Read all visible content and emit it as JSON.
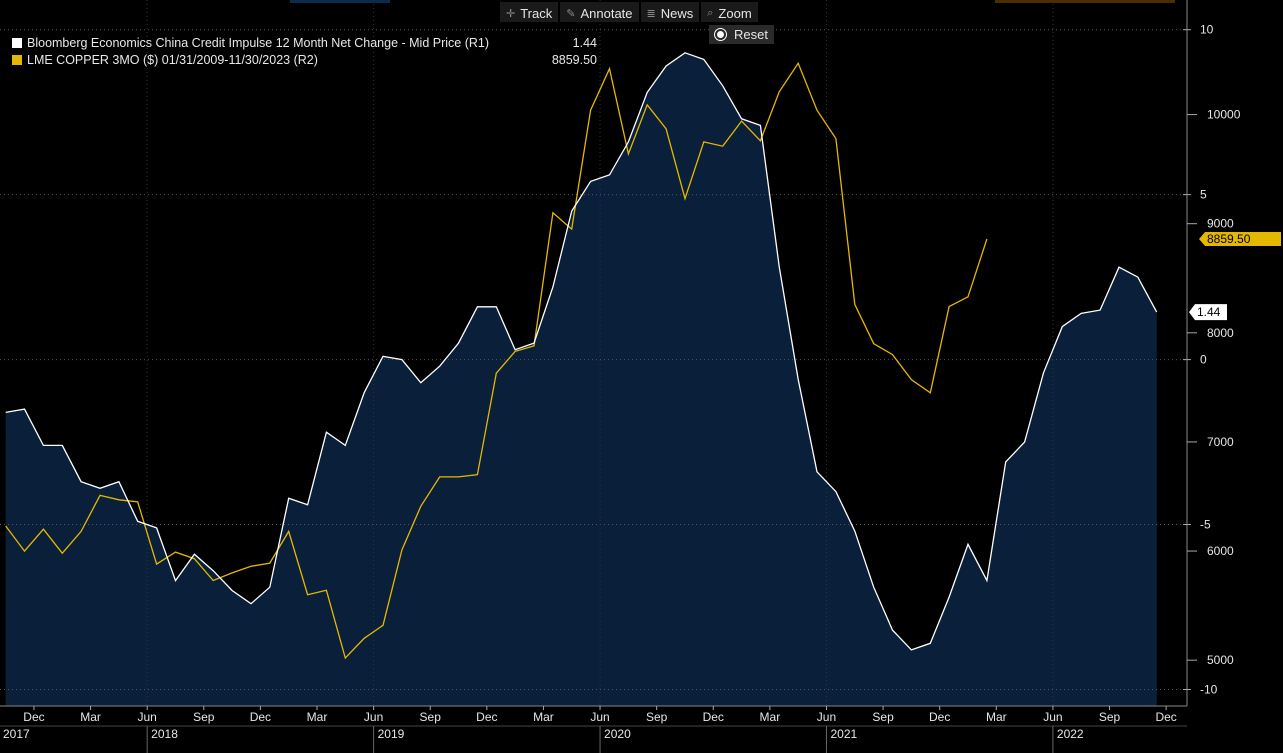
{
  "toolbar": {
    "track_label": "Track",
    "annotate_label": "Annotate",
    "news_label": "News",
    "zoom_label": "Zoom",
    "reset_label": "Reset"
  },
  "legend": {
    "series1_label": "Bloomberg Economics China Credit Impulse 12 Month Net Change - Mid Price (R1)",
    "series1_value": "1.44",
    "series2_label": "LME COPPER 3MO ($) 01/31/2009-11/30/2023 (R2)",
    "series2_value": "8859.50"
  },
  "colors": {
    "background": "#000000",
    "area_fill": "#0a1f3a",
    "impulse_line": "#ffffff",
    "copper_line": "#e5b800",
    "grid": "#555555",
    "axis_text": "#e6e6e6",
    "label_bg": "#ffffff"
  },
  "chart_data": {
    "type": "line",
    "title": "",
    "x_labels": [
      {
        "label": "Dec",
        "t": 1.5
      },
      {
        "label": "Mar",
        "t": 4.5
      },
      {
        "label": "Jun",
        "t": 7.5
      },
      {
        "label": "Sep",
        "t": 10.5
      },
      {
        "label": "Dec",
        "t": 13.5
      },
      {
        "label": "Mar",
        "t": 16.5
      },
      {
        "label": "Jun",
        "t": 19.5
      },
      {
        "label": "Sep",
        "t": 22.5
      },
      {
        "label": "Dec",
        "t": 25.5
      },
      {
        "label": "Mar",
        "t": 28.5
      },
      {
        "label": "Jun",
        "t": 31.5
      },
      {
        "label": "Sep",
        "t": 34.5
      },
      {
        "label": "Dec",
        "t": 37.5
      },
      {
        "label": "Mar",
        "t": 40.5
      },
      {
        "label": "Jun",
        "t": 43.5
      },
      {
        "label": "Sep",
        "t": 46.5
      },
      {
        "label": "Dec",
        "t": 49.5
      },
      {
        "label": "Mar",
        "t": 52.5
      },
      {
        "label": "Jun",
        "t": 55.5
      },
      {
        "label": "Sep",
        "t": 58.5
      },
      {
        "label": "Dec",
        "t": 61.5
      }
    ],
    "year_labels": [
      {
        "label": "2017",
        "t": 0
      },
      {
        "label": "2018",
        "t": 8
      },
      {
        "label": "2019",
        "t": 20
      },
      {
        "label": "2020",
        "t": 32
      },
      {
        "label": "2021",
        "t": 44
      },
      {
        "label": "2022",
        "t": 56
      }
    ],
    "x_range": [
      -0.3,
      62.5
    ],
    "series": [
      {
        "name": "Bloomberg Economics China Credit Impulse 12 Month Net Change - Mid Price (R1)",
        "axis": "R1",
        "t_start": 0,
        "values": [
          -1.6,
          -1.5,
          -2.6,
          -2.6,
          -3.7,
          -3.9,
          -3.7,
          -4.9,
          -5.1,
          -6.7,
          -5.9,
          -6.4,
          -7.0,
          -7.4,
          -6.9,
          -4.2,
          -4.4,
          -2.2,
          -2.6,
          -1.0,
          0.1,
          -0.0,
          -0.7,
          -0.2,
          0.5,
          1.6,
          1.6,
          0.3,
          0.5,
          2.2,
          4.5,
          5.4,
          5.6,
          6.6,
          8.1,
          8.9,
          9.3,
          9.1,
          8.3,
          7.3,
          7.1,
          2.8,
          -0.6,
          -3.4,
          -4.0,
          -5.2,
          -6.9,
          -8.2,
          -8.8,
          -8.6,
          -7.2,
          -5.6,
          -6.7,
          -3.1,
          -2.5,
          -0.4,
          1.0,
          1.4,
          1.5,
          2.8,
          2.5,
          1.44
        ],
        "color": "#ffffff"
      },
      {
        "name": "LME COPPER 3MO ($) 01/31/2009-11/30/2023 (R2)",
        "axis": "R2",
        "t_start": 0,
        "values": [
          6230,
          6000,
          6200,
          5980,
          6180,
          6510,
          6470,
          6450,
          5880,
          5990,
          5930,
          5730,
          5800,
          5860,
          5890,
          6180,
          5600,
          5640,
          5020,
          5200,
          5320,
          6010,
          6410,
          6680,
          6680,
          6700,
          7630,
          7830,
          7880,
          9100,
          8950,
          10040,
          10420,
          9640,
          10090,
          9870,
          9230,
          9750,
          9710,
          9940,
          9760,
          10210,
          10470,
          10040,
          9780,
          8260,
          7900,
          7800,
          7570,
          7450,
          8240,
          8330,
          8859.5
        ],
        "color": "#e5b800"
      }
    ],
    "right_axis_R1": {
      "ticks": [
        10,
        5,
        0,
        -5,
        -10
      ],
      "range": [
        -10.5,
        10.9
      ]
    },
    "right_axis_R2": {
      "ticks": [
        10000,
        9000,
        8000,
        7000,
        6000,
        5000
      ],
      "range": [
        4580,
        11050
      ]
    },
    "last_value_labels": {
      "R1": "1.44",
      "R2": "8859.50"
    },
    "grid": true
  }
}
